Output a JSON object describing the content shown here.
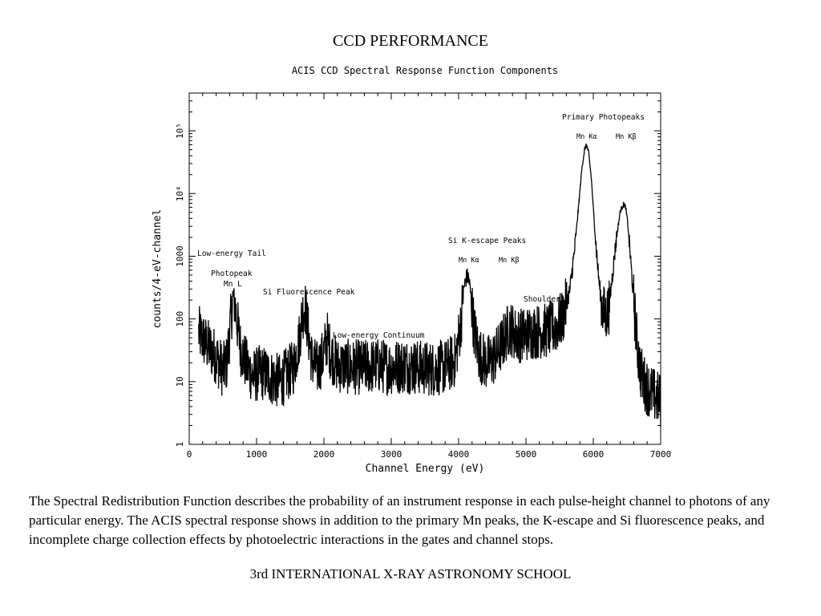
{
  "slide": {
    "title": "CCD PERFORMANCE",
    "description": "The Spectral Redistribution Function describes the probability of an instrument response in each pulse-height channel to photons of any particular energy. The ACIS spectral response shows in addition to the primary Mn peaks, the K-escape and Si fluorescence peaks, and incomplete charge collection effects by photoelectric interactions in the gates and channel stops.",
    "footer": "3rd INTERNATIONAL X-RAY ASTRONOMY SCHOOL"
  },
  "chart_data": {
    "type": "line",
    "title": "ACIS CCD Spectral Response Function Components",
    "xlabel": "Channel Energy (eV)",
    "ylabel": "counts/4-eV-channel",
    "xlim": [
      0,
      7000
    ],
    "ylim": [
      1,
      400000
    ],
    "yscale": "log",
    "grid": false,
    "x_ticks": [
      0,
      1000,
      2000,
      3000,
      4000,
      5000,
      6000,
      7000
    ],
    "x_tick_labels": [
      "0",
      "1000",
      "2000",
      "3000",
      "4000",
      "5000",
      "6000",
      "7000"
    ],
    "y_ticks": [
      1,
      10,
      100,
      1000,
      10000,
      100000
    ],
    "y_tick_labels": [
      "1",
      "10",
      "100",
      "1000",
      "10⁴",
      "10⁵"
    ],
    "series": [
      {
        "x": [
          140,
          250,
          400,
          500,
          560,
          620,
          660,
          700,
          760,
          850,
          950,
          1050,
          1150,
          1250,
          1350,
          1450,
          1550,
          1630,
          1680,
          1720,
          1760,
          1820,
          1900,
          1980,
          2050,
          2100,
          2200,
          2400,
          2600,
          2800,
          3000,
          3200,
          3400,
          3600,
          3800,
          3950,
          4030,
          4080,
          4120,
          4150,
          4180,
          4230,
          4300,
          4400,
          4500,
          4600,
          4700,
          4760,
          4850,
          4950,
          5100,
          5300,
          5450,
          5550,
          5650,
          5720,
          5780,
          5830,
          5870,
          5900,
          5930,
          5970,
          6020,
          6080,
          6130,
          6180,
          6230,
          6280,
          6340,
          6400,
          6450,
          6480,
          6510,
          6550,
          6600,
          6650,
          6700,
          6750,
          6800,
          6900,
          7000
        ],
        "y": [
          60,
          40,
          25,
          15,
          20,
          100,
          250,
          110,
          35,
          18,
          12,
          14,
          13,
          11,
          10,
          13,
          17,
          45,
          120,
          160,
          70,
          22,
          16,
          24,
          50,
          28,
          18,
          17,
          17,
          18,
          17,
          18,
          17,
          16,
          17,
          22,
          80,
          320,
          470,
          450,
          250,
          70,
          28,
          20,
          22,
          32,
          55,
          75,
          55,
          55,
          62,
          65,
          75,
          110,
          280,
          1200,
          6000,
          25000,
          50000,
          60000,
          45000,
          18000,
          2800,
          450,
          150,
          110,
          150,
          450,
          1800,
          5200,
          6800,
          6000,
          3500,
          1000,
          200,
          40,
          15,
          10,
          8,
          6,
          5
        ]
      }
    ],
    "annotations": {
      "low_energy_tail": "Low-energy Tail",
      "photopeak": "Photopeak",
      "mn_l": "Mn L",
      "si_fluorescence": "Si Fluorescence Peak",
      "low_energy_continuum": "Low-energy Continuum",
      "si_k_escape": "Si K-escape Peaks",
      "escape_mn_ka": "Mn Kα",
      "escape_mn_kb": "Mn Kβ",
      "shoulder": "Shoulder",
      "primary_photopeaks": "Primary Photopeaks",
      "primary_mn_ka": "Mn Kα",
      "primary_mn_kb": "Mn Kβ"
    }
  }
}
